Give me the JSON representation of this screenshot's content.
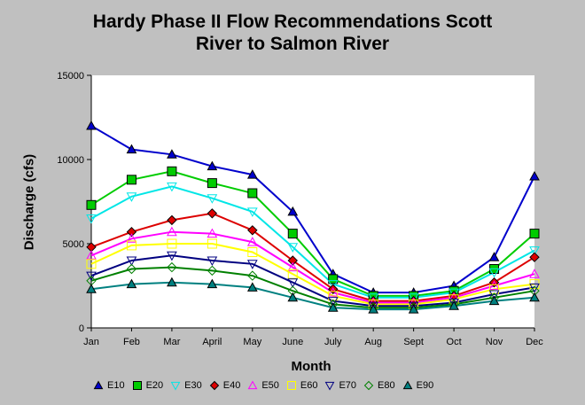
{
  "chart_data": {
    "type": "line",
    "title_lines": [
      "Hardy Phase II Flow Recommendations Scott",
      "River to Salmon River"
    ],
    "xlabel": "Month",
    "ylabel": "Discharge (cfs)",
    "categories": [
      "Jan",
      "Feb",
      "Mar",
      "April",
      "May",
      "June",
      "July",
      "Aug",
      "Sept",
      "Oct",
      "Nov",
      "Dec"
    ],
    "yticks": [
      "0",
      "5000",
      "10000",
      "15000"
    ],
    "ylim": [
      0,
      15000
    ],
    "grid": false,
    "legend_position": "bottom",
    "series": [
      {
        "name": "E10",
        "marker": "triangle-up",
        "filled": true,
        "color": "#0000cc",
        "values": [
          12000,
          10600,
          10300,
          9600,
          9100,
          6900,
          3200,
          2100,
          2100,
          2500,
          4200,
          9000
        ]
      },
      {
        "name": "E20",
        "marker": "square",
        "filled": true,
        "color": "#00cc00",
        "values": [
          7300,
          8800,
          9300,
          8600,
          8000,
          5600,
          2900,
          1900,
          1900,
          2200,
          3500,
          5600
        ]
      },
      {
        "name": "E30",
        "marker": "triangle-down",
        "filled": false,
        "color": "#00e6e6",
        "values": [
          6500,
          7800,
          8400,
          7700,
          6900,
          4800,
          2600,
          1800,
          1800,
          2100,
          3300,
          4600
        ]
      },
      {
        "name": "E40",
        "marker": "diamond",
        "filled": true,
        "color": "#dd0000",
        "values": [
          4800,
          5700,
          6400,
          6800,
          5800,
          4000,
          2300,
          1600,
          1600,
          1900,
          2700,
          4200
        ]
      },
      {
        "name": "E50",
        "marker": "triangle-up",
        "filled": false,
        "color": "#ff00ff",
        "values": [
          4300,
          5300,
          5700,
          5600,
          5100,
          3600,
          2100,
          1500,
          1500,
          1800,
          2500,
          3200
        ]
      },
      {
        "name": "E60",
        "marker": "square",
        "filled": false,
        "color": "#ffff00",
        "values": [
          3800,
          4900,
          5000,
          5000,
          4500,
          3200,
          1900,
          1400,
          1400,
          1700,
          2300,
          2600
        ]
      },
      {
        "name": "E70",
        "marker": "triangle-down",
        "filled": false,
        "color": "#000080",
        "values": [
          3100,
          4000,
          4300,
          4000,
          3800,
          2700,
          1600,
          1300,
          1300,
          1500,
          2000,
          2400
        ]
      },
      {
        "name": "E80",
        "marker": "diamond",
        "filled": false,
        "color": "#008000",
        "values": [
          2800,
          3500,
          3600,
          3400,
          3100,
          2200,
          1400,
          1200,
          1200,
          1400,
          1800,
          2200
        ]
      },
      {
        "name": "E90",
        "marker": "triangle-up",
        "filled": true,
        "color": "#008080",
        "values": [
          2300,
          2600,
          2700,
          2600,
          2400,
          1800,
          1200,
          1100,
          1100,
          1300,
          1600,
          1800
        ]
      }
    ]
  }
}
